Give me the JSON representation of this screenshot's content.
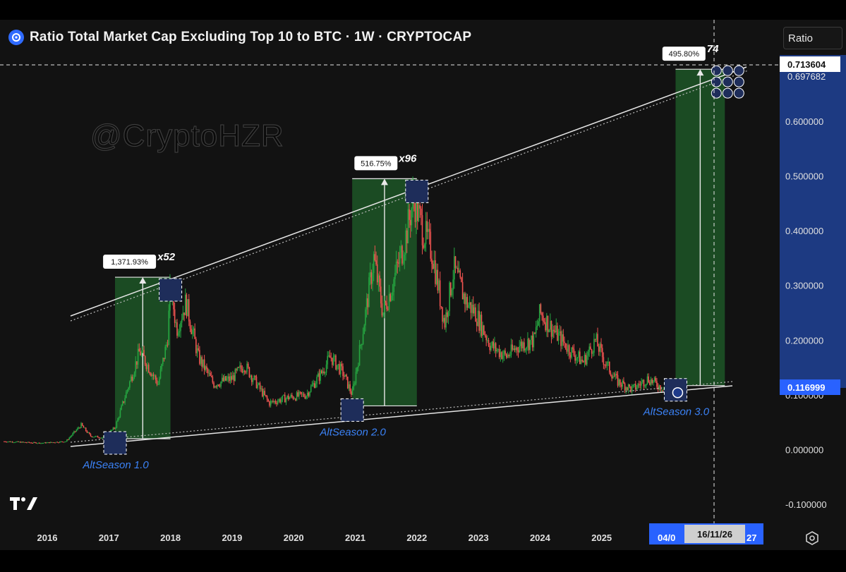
{
  "header": {
    "title": "Ratio Total Market Cap Excluding Top 10 to BTC · 1W · CRYPTOCAP",
    "scale_button": "Ratio"
  },
  "watermark": "@CryptoHZR",
  "crosshair": {
    "price_label": "0.713604",
    "date_label": "16/11/26",
    "left_partial_date": "04/0",
    "right_partial_date": "27"
  },
  "last_price_label": "0.116999",
  "partial_price_label": "0.697682",
  "colors": {
    "up_candle": "#26a641",
    "down_candle": "#ef5350",
    "accent_blue": "#2962ff",
    "price_bar": "#1f3f8f",
    "range_fill": "#1f5f2a"
  },
  "chart_data": {
    "type": "candlestick",
    "title": "Ratio Total Market Cap Excluding Top 10 to BTC · 1W · CRYPTOCAP",
    "scale": "Ratio",
    "x_ticks": [
      "2016",
      "2017",
      "2018",
      "2019",
      "2020",
      "2021",
      "2022",
      "2023",
      "2024",
      "2025"
    ],
    "y_ticks": [
      "0.600000",
      "0.500000",
      "0.400000",
      "0.300000",
      "0.200000",
      "0.100000",
      "0.000000",
      "-0.100000"
    ],
    "ylim": [
      -0.12,
      0.8
    ],
    "series_approx": [
      {
        "x": 2015.3,
        "y": 0.015
      },
      {
        "x": 2015.9,
        "y": 0.012
      },
      {
        "x": 2016.3,
        "y": 0.015
      },
      {
        "x": 2016.55,
        "y": 0.045
      },
      {
        "x": 2016.7,
        "y": 0.025
      },
      {
        "x": 2016.9,
        "y": 0.022
      },
      {
        "x": 2017.1,
        "y": 0.04
      },
      {
        "x": 2017.3,
        "y": 0.11
      },
      {
        "x": 2017.5,
        "y": 0.18
      },
      {
        "x": 2017.65,
        "y": 0.15
      },
      {
        "x": 2017.8,
        "y": 0.12
      },
      {
        "x": 2017.95,
        "y": 0.2
      },
      {
        "x": 2018.0,
        "y": 0.3
      },
      {
        "x": 2018.1,
        "y": 0.22
      },
      {
        "x": 2018.25,
        "y": 0.27
      },
      {
        "x": 2018.45,
        "y": 0.17
      },
      {
        "x": 2018.7,
        "y": 0.12
      },
      {
        "x": 2019.0,
        "y": 0.13
      },
      {
        "x": 2019.2,
        "y": 0.155
      },
      {
        "x": 2019.4,
        "y": 0.12
      },
      {
        "x": 2019.6,
        "y": 0.085
      },
      {
        "x": 2019.9,
        "y": 0.095
      },
      {
        "x": 2020.2,
        "y": 0.1
      },
      {
        "x": 2020.45,
        "y": 0.14
      },
      {
        "x": 2020.6,
        "y": 0.17
      },
      {
        "x": 2020.8,
        "y": 0.14
      },
      {
        "x": 2020.95,
        "y": 0.1
      },
      {
        "x": 2021.1,
        "y": 0.2
      },
      {
        "x": 2021.3,
        "y": 0.35
      },
      {
        "x": 2021.45,
        "y": 0.25
      },
      {
        "x": 2021.6,
        "y": 0.3
      },
      {
        "x": 2021.8,
        "y": 0.38
      },
      {
        "x": 2021.95,
        "y": 0.46
      },
      {
        "x": 2022.1,
        "y": 0.4
      },
      {
        "x": 2022.25,
        "y": 0.36
      },
      {
        "x": 2022.45,
        "y": 0.23
      },
      {
        "x": 2022.6,
        "y": 0.33
      },
      {
        "x": 2022.8,
        "y": 0.27
      },
      {
        "x": 2022.95,
        "y": 0.25
      },
      {
        "x": 2023.2,
        "y": 0.19
      },
      {
        "x": 2023.45,
        "y": 0.17
      },
      {
        "x": 2023.65,
        "y": 0.19
      },
      {
        "x": 2023.9,
        "y": 0.2
      },
      {
        "x": 2024.0,
        "y": 0.25
      },
      {
        "x": 2024.2,
        "y": 0.22
      },
      {
        "x": 2024.5,
        "y": 0.18
      },
      {
        "x": 2024.7,
        "y": 0.16
      },
      {
        "x": 2024.9,
        "y": 0.2
      },
      {
        "x": 2025.05,
        "y": 0.16
      },
      {
        "x": 2025.25,
        "y": 0.125
      },
      {
        "x": 2025.5,
        "y": 0.11
      },
      {
        "x": 2025.75,
        "y": 0.13
      },
      {
        "x": 2025.95,
        "y": 0.115
      },
      {
        "x": 2026.2,
        "y": 0.117
      }
    ],
    "annotations": [
      {
        "label": "AltSeason 1.0",
        "percent": "1,371.93%",
        "multiple": "x52",
        "from": {
          "x": 2017.1,
          "y": 0.02
        },
        "to": {
          "x": 2018.0,
          "y": 0.315
        }
      },
      {
        "label": "AltSeason 2.0",
        "percent": "516.75%",
        "multiple": "x96",
        "from": {
          "x": 2020.95,
          "y": 0.08
        },
        "to": {
          "x": 2022.0,
          "y": 0.495
        }
      },
      {
        "label": "AltSeason 3.0",
        "percent": "495.80%",
        "multiple": "74",
        "from": {
          "x": 2026.2,
          "y": 0.117
        },
        "to": {
          "x": 2027.0,
          "y": 0.695
        }
      }
    ]
  }
}
